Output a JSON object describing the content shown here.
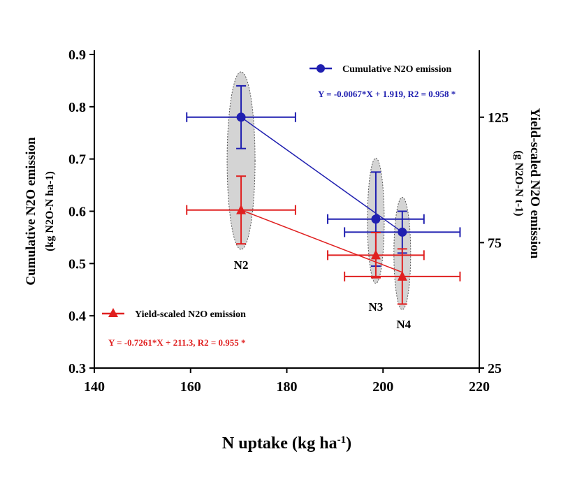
{
  "chart_data": {
    "type": "scatter",
    "xlabel": "N uptake (kg ha-1)",
    "xlabel_main": "N uptake (kg ha",
    "xlabel_sup": "-1",
    "xlabel_end": ")",
    "ylabel_left_1": "Cumulative N2O emission",
    "ylabel_left_2": "(kg N2O-N ha-1)",
    "ylabel_right_1": "Yield-scaled N2O emission",
    "ylabel_right_2": "(g N2O-N t-1)",
    "xlim": [
      140,
      220
    ],
    "ylim_left": [
      0.3,
      0.9
    ],
    "ylim_right": [
      25,
      150
    ],
    "xticks": [
      "140",
      "160",
      "180",
      "200",
      "220"
    ],
    "yticks_left": [
      "0.3",
      "0.4",
      "0.5",
      "0.6",
      "0.7",
      "0.8",
      "0.9"
    ],
    "yticks_right": [
      "25",
      "75",
      "125"
    ],
    "groups": [
      "N2",
      "N3",
      "N4"
    ],
    "series": [
      {
        "name": "Cumulative N2O emission",
        "axis": "left",
        "color": "#1f1fb0",
        "marker": "circle",
        "x": [
          170.5,
          198.5,
          204
        ],
        "xerr": [
          11.3,
          10,
          12
        ],
        "y": [
          0.78,
          0.585,
          0.56
        ],
        "yerr": [
          0.06,
          0.09,
          0.04
        ],
        "equation": "Y = -0.0067*X + 1.919, R2 = 0.958 *",
        "fit": {
          "slope": -0.0067,
          "intercept": 1.919,
          "r2": 0.958
        }
      },
      {
        "name": "Yield-scaled N2O emission",
        "axis": "right",
        "color": "#e02020",
        "marker": "triangle",
        "x": [
          170.5,
          198.5,
          204
        ],
        "xerr": [
          11.3,
          10,
          12
        ],
        "y": [
          88,
          70,
          61.5
        ],
        "yerr": [
          13.5,
          9,
          11
        ],
        "equation": "Y = -0.7261*X + 211.3, R2 = 0.955 *",
        "fit": {
          "slope": -0.7261,
          "intercept": 211.3,
          "r2": 0.955
        }
      }
    ]
  }
}
